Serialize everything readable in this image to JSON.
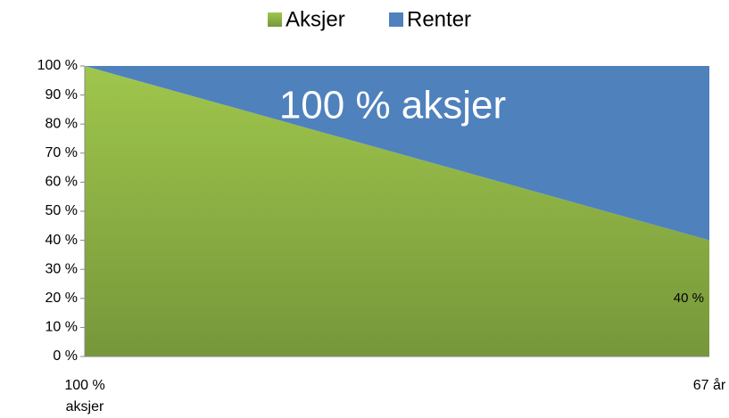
{
  "chart_data": {
    "type": "stacked_area",
    "categories": [
      "100 % aksjer",
      "67 år"
    ],
    "series": [
      {
        "name": "Aksjer",
        "color": "#8db444",
        "values": [
          100,
          40
        ],
        "value_labels": [
          null,
          "40 %"
        ]
      },
      {
        "name": "Renter",
        "color": "#4f81bd",
        "values": [
          0,
          60
        ]
      }
    ],
    "ylim": [
      0,
      100
    ],
    "yticks": [
      {
        "value": 0,
        "label": "0 %"
      },
      {
        "value": 10,
        "label": "10 %"
      },
      {
        "value": 20,
        "label": "20 %"
      },
      {
        "value": 30,
        "label": "30 %"
      },
      {
        "value": 40,
        "label": "40 %"
      },
      {
        "value": 50,
        "label": "50 %"
      },
      {
        "value": 60,
        "label": "60 %"
      },
      {
        "value": 70,
        "label": "70 %"
      },
      {
        "value": 80,
        "label": "80 %"
      },
      {
        "value": 90,
        "label": "90 %"
      },
      {
        "value": 100,
        "label": "100 %"
      }
    ],
    "annotation": "100 % aksjer",
    "legend": "top"
  }
}
